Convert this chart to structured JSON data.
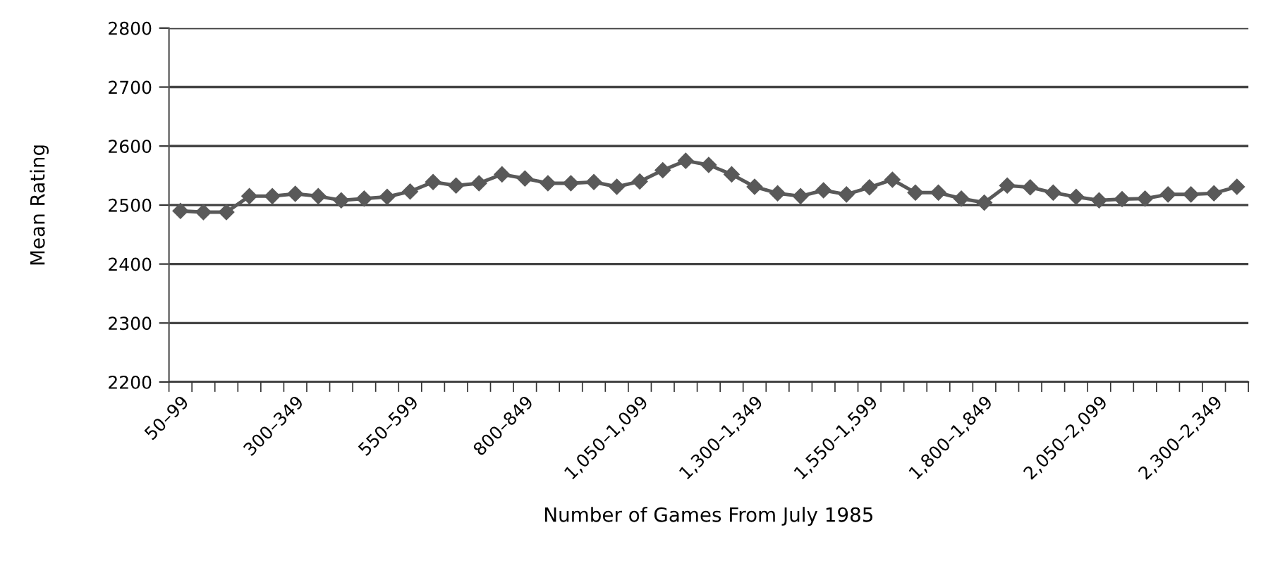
{
  "chart_data": {
    "type": "line",
    "xlabel": "Number of Games From July 1985",
    "ylabel": "Mean Rating",
    "categories": [
      "50–99",
      null,
      null,
      null,
      null,
      "300–349",
      null,
      null,
      null,
      null,
      "550–599",
      null,
      null,
      null,
      null,
      "800–849",
      null,
      null,
      null,
      null,
      "1,050–1,099",
      null,
      null,
      null,
      null,
      "1,300–1,349",
      null,
      null,
      null,
      null,
      "1,550–1,599",
      null,
      null,
      null,
      null,
      "1,800–1,849",
      null,
      null,
      null,
      null,
      "2,050–2,099",
      null,
      null,
      null,
      null,
      "2,300–2,349",
      null
    ],
    "series": [
      {
        "color": "#595959",
        "values": [
          2490,
          2488,
          2488,
          2515,
          2515,
          2519,
          2515,
          2508,
          2511,
          2514,
          2523,
          2539,
          2533,
          2537,
          2552,
          2545,
          2537,
          2537,
          2539,
          2531,
          2540,
          2559,
          2575,
          2568,
          2552,
          2531,
          2520,
          2515,
          2525,
          2518,
          2530,
          2543,
          2521,
          2521,
          2511,
          2504,
          2533,
          2530,
          2521,
          2514,
          2508,
          2510,
          2511,
          2518,
          2518,
          2520,
          2531
        ]
      }
    ],
    "ylim": [
      2200,
      2800
    ],
    "yticks": [
      2200,
      2300,
      2400,
      2500,
      2600,
      2700,
      2800
    ],
    "grid": "y",
    "marker": "diamond",
    "line_style": "solid"
  }
}
